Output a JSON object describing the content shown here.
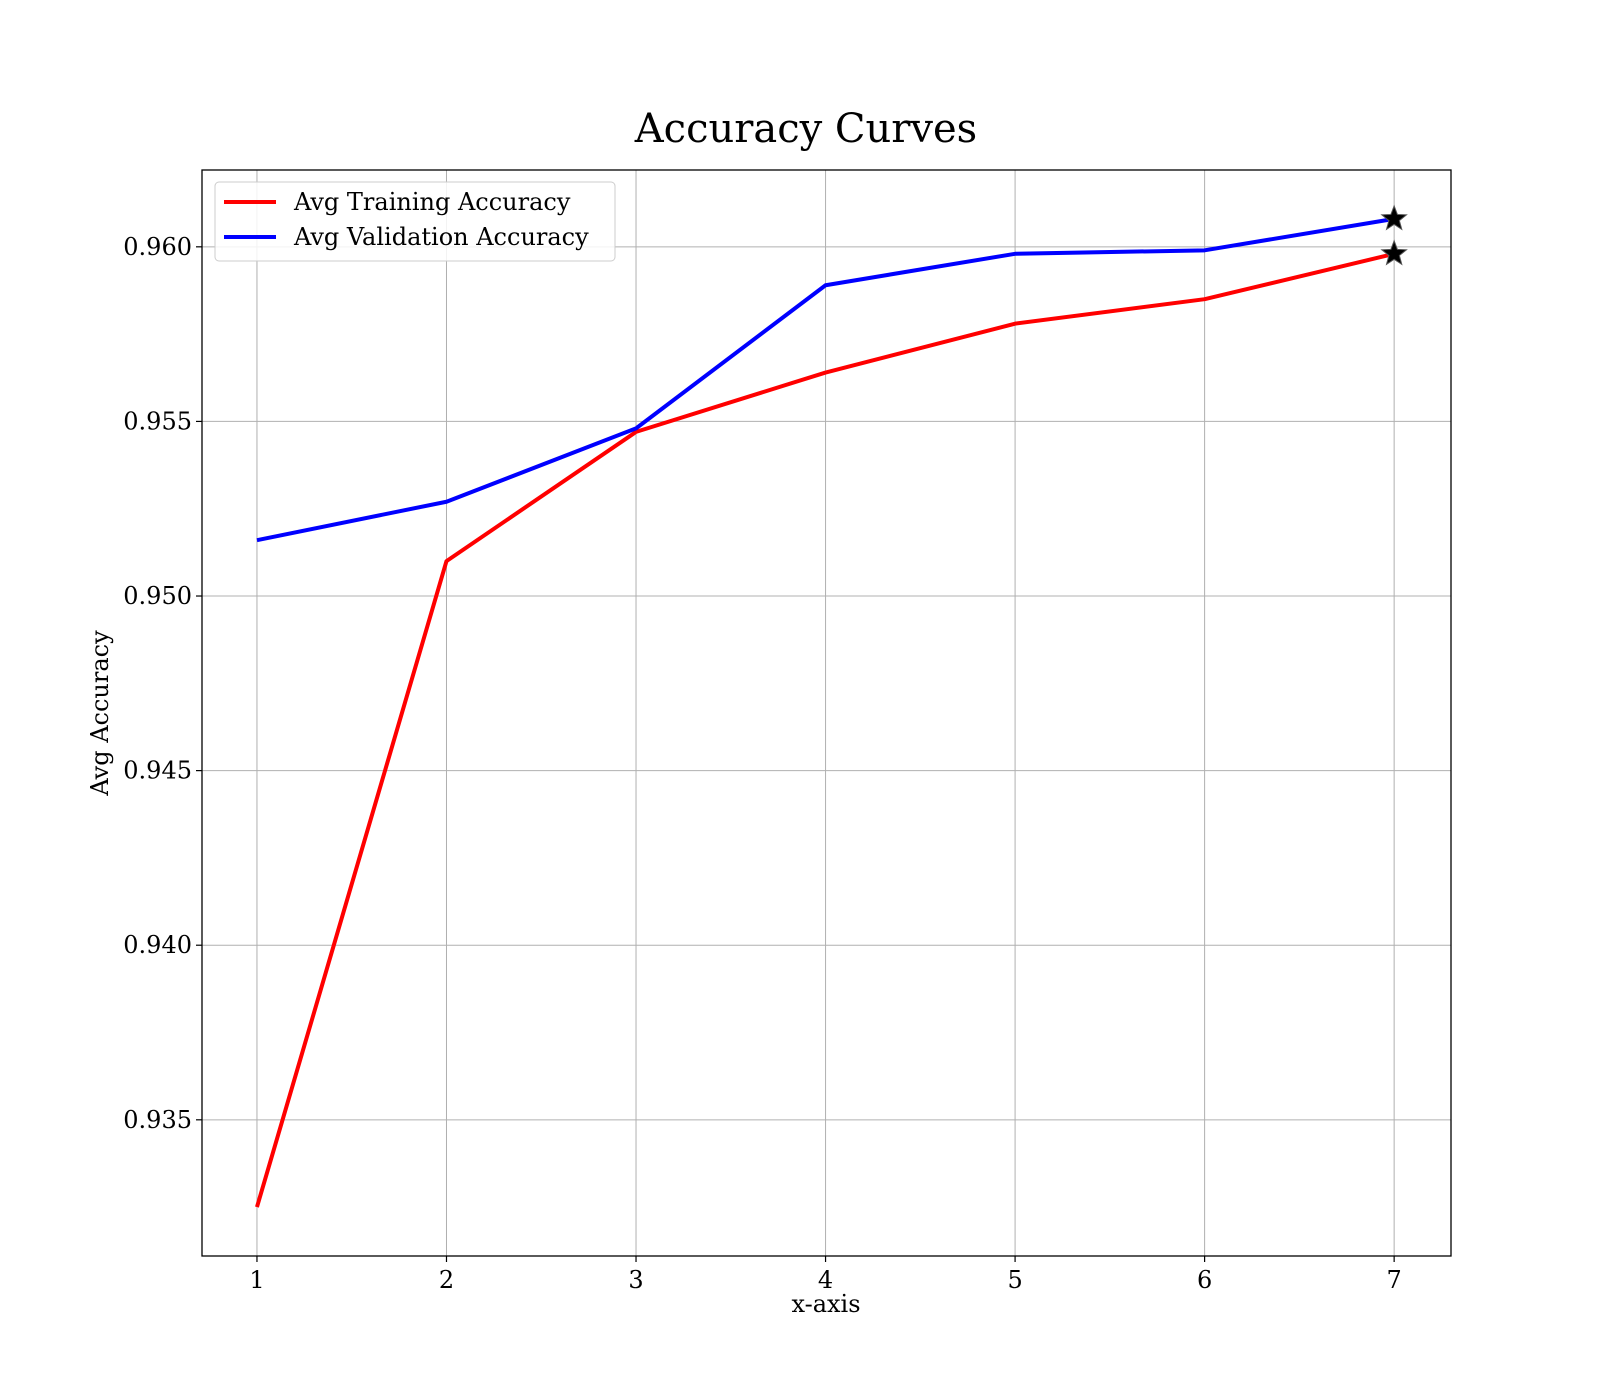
{
  "chart_data": {
    "type": "line",
    "title": "Accuracy Curves",
    "xlabel": "x-axis",
    "ylabel": "Avg Accuracy",
    "x": [
      1,
      2,
      3,
      4,
      5,
      6,
      7
    ],
    "xticks": [
      "1",
      "2",
      "3",
      "4",
      "5",
      "6",
      "7"
    ],
    "yticks": [
      "0.935",
      "0.940",
      "0.945",
      "0.950",
      "0.955",
      "0.960"
    ],
    "xlim": [
      0.71,
      7.3
    ],
    "ylim": [
      0.9311,
      0.9622
    ],
    "grid": true,
    "legend_position": "top-left",
    "series": [
      {
        "name": "Avg Training Accuracy",
        "color": "#ff0000",
        "values": [
          0.9325,
          0.951,
          0.9547,
          0.9564,
          0.9578,
          0.9585,
          0.9598
        ],
        "best_marker": {
          "x": 7,
          "y": 0.9598,
          "shape": "star"
        }
      },
      {
        "name": "Avg Validation Accuracy",
        "color": "#0000ff",
        "values": [
          0.9516,
          0.9527,
          0.9548,
          0.9589,
          0.9598,
          0.9599,
          0.9608
        ],
        "best_marker": {
          "x": 7,
          "y": 0.9608,
          "shape": "star"
        }
      }
    ]
  }
}
